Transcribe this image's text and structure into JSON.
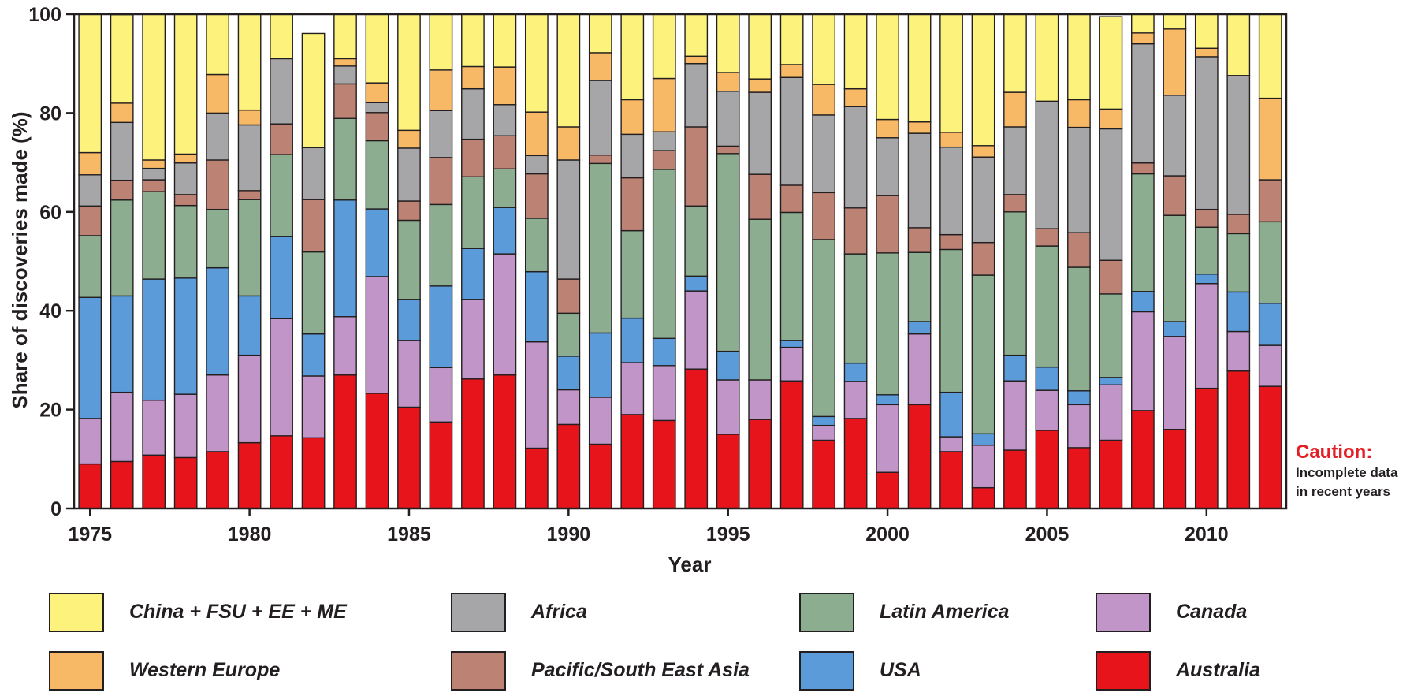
{
  "chart_data": {
    "type": "bar",
    "stacked": true,
    "xlabel": "Year",
    "ylabel": "Share of discoveries made (%)",
    "ylim": [
      0,
      100
    ],
    "yticks": [
      0,
      20,
      40,
      60,
      80,
      100
    ],
    "xticks": [
      1975,
      1980,
      1985,
      1990,
      1995,
      2000,
      2005,
      2010
    ],
    "categories": [
      1975,
      1976,
      1977,
      1978,
      1979,
      1980,
      1981,
      1982,
      1983,
      1984,
      1985,
      1986,
      1987,
      1988,
      1989,
      1990,
      1991,
      1992,
      1993,
      1994,
      1995,
      1996,
      1997,
      1998,
      1999,
      2000,
      2001,
      2002,
      2003,
      2004,
      2005,
      2006,
      2007,
      2008,
      2009,
      2010,
      2011,
      2012
    ],
    "grid": false,
    "legend_position": "bottom",
    "series": [
      {
        "name": "Australia",
        "color": "#e8141c",
        "values": [
          9,
          9.5,
          10.8,
          10.3,
          11.5,
          13.3,
          14.7,
          14.3,
          27,
          23.3,
          20.5,
          17.5,
          26.2,
          27,
          12.2,
          17,
          13,
          19,
          17.8,
          28.2,
          15,
          18,
          25.8,
          13.8,
          18.2,
          7.3,
          21,
          11.5,
          4.2,
          11.8,
          15.8,
          12.3,
          13.8,
          19.8,
          16,
          24.3,
          27.8,
          24.7
        ]
      },
      {
        "name": "Canada",
        "color": "#c195c8",
        "values": [
          9.2,
          14,
          11.1,
          12.8,
          15.5,
          17.7,
          23.7,
          12.5,
          11.8,
          23.6,
          13.5,
          11,
          16.1,
          24.5,
          21.5,
          7,
          9.5,
          10.5,
          11.1,
          15.8,
          11,
          8,
          6.8,
          3,
          7.5,
          13.7,
          14.3,
          3,
          8.6,
          14,
          8.1,
          8.7,
          11.2,
          20,
          18.8,
          21.2,
          8,
          8.3
        ]
      },
      {
        "name": "USA",
        "color": "#5b9bd9",
        "values": [
          24.5,
          19.5,
          24.5,
          23.5,
          21.7,
          12,
          16.6,
          8.5,
          23.6,
          13.7,
          8.3,
          16.5,
          10.3,
          9.4,
          14.2,
          6.8,
          13,
          9,
          5.5,
          3,
          5.8,
          0,
          1.4,
          1.8,
          3.7,
          2,
          2.5,
          9,
          2.3,
          5.2,
          4.7,
          2.8,
          1.5,
          4.1,
          3,
          1.9,
          8,
          8.5
        ]
      },
      {
        "name": "Latin America",
        "color": "#8cad8f",
        "values": [
          12.5,
          19.4,
          17.7,
          14.7,
          11.8,
          19.5,
          16.6,
          16.6,
          16.5,
          13.8,
          16,
          16.5,
          14.5,
          7.8,
          10.8,
          8.7,
          34.3,
          17.7,
          34.2,
          14.2,
          40,
          32.5,
          25.9,
          35.8,
          22.1,
          28.7,
          14,
          28.9,
          32.1,
          29,
          24.5,
          25,
          16.9,
          23.8,
          21.5,
          9.5,
          11.8,
          16.5
        ]
      },
      {
        "name": "Pacific/South East Asia",
        "color": "#bc8274",
        "values": [
          6,
          4,
          2.4,
          2.2,
          10,
          1.8,
          6.2,
          10.6,
          7,
          5.7,
          3.9,
          9.5,
          7.6,
          6.7,
          9,
          6.9,
          1.7,
          10.7,
          3.8,
          16,
          1.5,
          9.1,
          5.5,
          9.5,
          9.3,
          11.6,
          5,
          3,
          6.6,
          3.5,
          3.5,
          7,
          6.8,
          2.2,
          8,
          3.6,
          3.9,
          8.5
        ]
      },
      {
        "name": "Africa",
        "color": "#a6a6a8",
        "values": [
          6.3,
          11.7,
          2.3,
          6.4,
          9.5,
          13.3,
          13.2,
          10.5,
          3.6,
          2,
          10.7,
          9.5,
          10.2,
          6.3,
          3.7,
          24.1,
          15.1,
          8.8,
          3.8,
          12.8,
          11.1,
          16.6,
          21.8,
          15.7,
          20.5,
          11.7,
          19.1,
          17.7,
          17.3,
          13.7,
          25.8,
          21.3,
          26.6,
          24.1,
          16.3,
          30.9,
          28.1,
          0
        ]
      },
      {
        "name": "Western Europe",
        "color": "#f7b965",
        "values": [
          4.5,
          3.9,
          1.7,
          1.8,
          7.8,
          3,
          0,
          0,
          1.5,
          4,
          3.6,
          8.2,
          4.5,
          7.6,
          8.8,
          6.7,
          5.6,
          7,
          10.8,
          1.5,
          3.8,
          2.7,
          2.6,
          6.2,
          3.6,
          3.7,
          2.3,
          3,
          2.3,
          7,
          0,
          5.6,
          4,
          2.2,
          13.4,
          1.7,
          0,
          16.5
        ]
      },
      {
        "name": "China + FSU + EE + ME",
        "color": "#fdf27c",
        "values": [
          28,
          17.9,
          29.5,
          28.3,
          12.2,
          19.4,
          9.2,
          23.1,
          9,
          13.9,
          23.5,
          11.3,
          10.6,
          10.7,
          19.8,
          22.8,
          7.8,
          17.3,
          13,
          8.5,
          11.8,
          13.1,
          10.2,
          14.2,
          15.1,
          21.3,
          21.8,
          23.9,
          26.6,
          15.8,
          17.6,
          17.3,
          18.7,
          3.8,
          3,
          6.9,
          12.4,
          17
        ]
      }
    ],
    "legend_order": [
      "China + FSU + EE + ME",
      "Africa",
      "Latin America",
      "Canada",
      "Western Europe",
      "Pacific/South East Asia",
      "USA",
      "Australia"
    ]
  },
  "caution": {
    "title": "Caution:",
    "line1": "Incomplete data",
    "line2": "in recent years"
  }
}
